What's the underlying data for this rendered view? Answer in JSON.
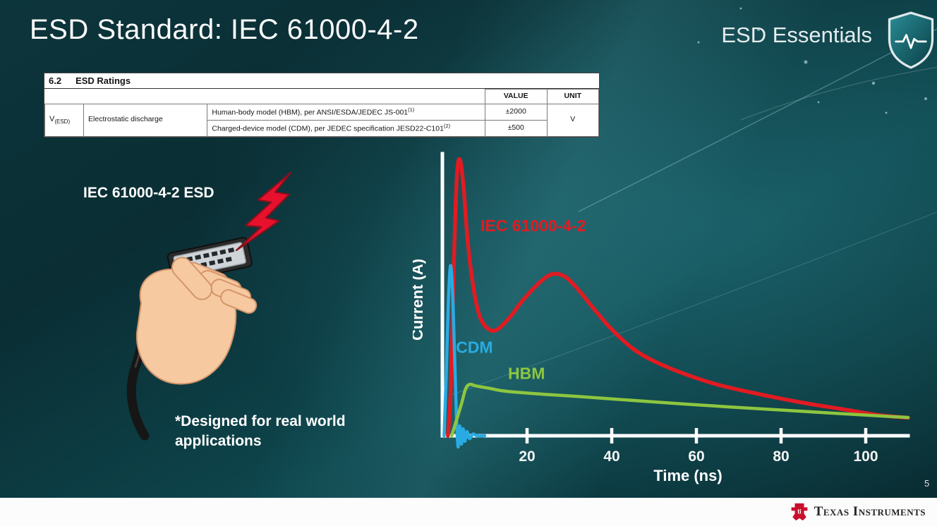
{
  "slide": {
    "title": "ESD Standard: IEC 61000-4-2",
    "brand": "ESD Essentials",
    "page_number": "5"
  },
  "table": {
    "caption_num": "6.2",
    "caption_title": "ESD Ratings",
    "header_value": "VALUE",
    "header_unit": "UNIT",
    "param": {
      "base": "V",
      "sub": "(ESD)"
    },
    "param_name": "Electrostatic discharge",
    "rows": [
      {
        "desc": "Human-body model (HBM), per ANSI/ESDA/JEDEC JS-001",
        "sup": "(1)",
        "value": "±2000"
      },
      {
        "desc": "Charged-device model (CDM), per JEDEC specification JESD22-C101",
        "sup": "(2)",
        "value": "±500"
      }
    ],
    "unit": "V"
  },
  "figure": {
    "label": "IEC 61000-4-2 ESD",
    "note_line1": "*Designed for real world",
    "note_line2": "applications"
  },
  "chart_data": {
    "type": "line",
    "title": "",
    "xlabel": "Time (ns)",
    "ylabel": "Current (A)",
    "x_ticks": [
      20,
      40,
      60,
      80,
      100
    ],
    "xlim": [
      0,
      110
    ],
    "ylim": [
      -0.05,
      1.05
    ],
    "y_ticks": [],
    "grid": false,
    "legend": "inline-labels",
    "series": [
      {
        "id": "iec",
        "name": "IEC 61000-4-2",
        "color": "#e11b22",
        "width": 5.5,
        "label_pos": [
          9,
          0.74
        ],
        "points": [
          [
            1.3,
            0
          ],
          [
            2.0,
            0.18
          ],
          [
            2.7,
            0.62
          ],
          [
            3.4,
            0.93
          ],
          [
            4.1,
            1.0
          ],
          [
            5.0,
            0.9
          ],
          [
            6.0,
            0.7
          ],
          [
            7.5,
            0.52
          ],
          [
            9,
            0.425
          ],
          [
            11,
            0.385
          ],
          [
            13,
            0.385
          ],
          [
            16,
            0.43
          ],
          [
            19,
            0.49
          ],
          [
            23,
            0.555
          ],
          [
            26,
            0.585
          ],
          [
            29,
            0.575
          ],
          [
            32,
            0.53
          ],
          [
            36,
            0.455
          ],
          [
            40,
            0.385
          ],
          [
            45,
            0.315
          ],
          [
            50,
            0.27
          ],
          [
            57,
            0.225
          ],
          [
            65,
            0.185
          ],
          [
            75,
            0.15
          ],
          [
            85,
            0.12
          ],
          [
            95,
            0.095
          ],
          [
            103,
            0.075
          ],
          [
            110,
            0.065
          ]
        ]
      },
      {
        "id": "cdm",
        "name": "CDM",
        "color": "#29abe2",
        "width": 4.5,
        "label_pos": [
          3.2,
          0.3
        ],
        "points": [
          [
            0.4,
            0
          ],
          [
            0.9,
            0.22
          ],
          [
            1.4,
            0.48
          ],
          [
            1.9,
            0.615
          ],
          [
            2.4,
            0.52
          ],
          [
            2.9,
            0.28
          ],
          [
            3.3,
            0.08
          ],
          [
            3.7,
            -0.04
          ],
          [
            4.1,
            0.035
          ],
          [
            4.5,
            -0.03
          ],
          [
            4.9,
            0.025
          ],
          [
            5.3,
            -0.02
          ],
          [
            5.8,
            0.015
          ],
          [
            6.4,
            -0.01
          ],
          [
            7.2,
            0.006
          ],
          [
            8.2,
            0
          ],
          [
            10,
            0
          ]
        ]
      },
      {
        "id": "hbm",
        "name": "HBM",
        "color": "#8dc63f",
        "width": 4.5,
        "label_pos": [
          15.5,
          0.205
        ],
        "points": [
          [
            2.2,
            0
          ],
          [
            3.2,
            0.05
          ],
          [
            4.5,
            0.115
          ],
          [
            5.5,
            0.17
          ],
          [
            6.5,
            0.186
          ],
          [
            8,
            0.18
          ],
          [
            11,
            0.172
          ],
          [
            14,
            0.163
          ],
          [
            18,
            0.157
          ],
          [
            24,
            0.15
          ],
          [
            32,
            0.142
          ],
          [
            42,
            0.131
          ],
          [
            55,
            0.117
          ],
          [
            68,
            0.104
          ],
          [
            80,
            0.093
          ],
          [
            92,
            0.082
          ],
          [
            102,
            0.073
          ],
          [
            110,
            0.066
          ]
        ]
      }
    ]
  },
  "footer": {
    "logo_text": "Texas Instruments",
    "logo_monogram": "ti"
  },
  "colors": {
    "accent_red": "#e11b22",
    "cdm_blue": "#29abe2",
    "hbm_green": "#8dc63f",
    "bolt_red": "#e8112d",
    "ti_red": "#c8102e",
    "background_teal": "#0b3a40"
  }
}
